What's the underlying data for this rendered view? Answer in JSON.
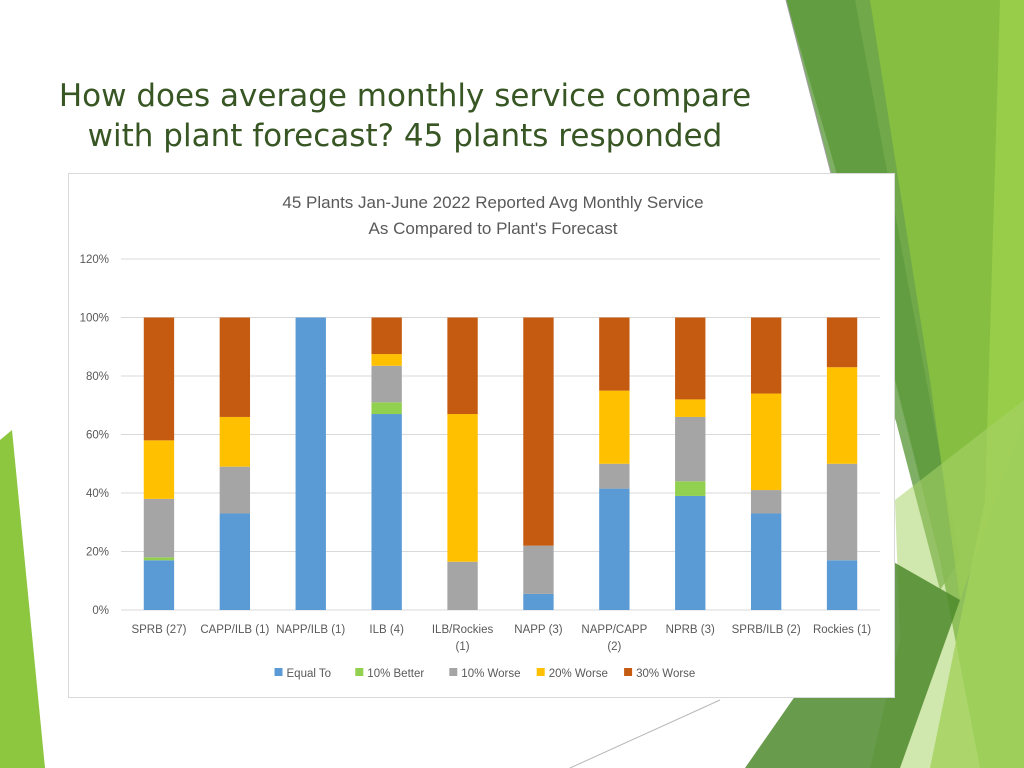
{
  "slide": {
    "title_line1": "How does average monthly service compare",
    "title_line2": "with plant forecast? 45 plants responded"
  },
  "colors": {
    "title": "#375623",
    "deco_green_dark": "#6aa84f",
    "deco_green_light": "#8dc63f"
  },
  "chart_data": {
    "type": "bar",
    "stacked": true,
    "title_line1": "45 Plants Jan-June 2022 Reported Avg Monthly Service",
    "title_line2": "As Compared to Plant's Forecast",
    "xlabel": "",
    "ylabel": "",
    "ylim": [
      0,
      120
    ],
    "yticks": [
      0,
      20,
      40,
      60,
      80,
      100,
      120
    ],
    "ytick_labels": [
      "0%",
      "20%",
      "40%",
      "60%",
      "80%",
      "100%",
      "120%"
    ],
    "grid": true,
    "legend_position": "bottom",
    "categories": [
      [
        "SPRB (27)"
      ],
      [
        "CAPP/ILB (1)"
      ],
      [
        "NAPP/ILB (1)"
      ],
      [
        "ILB (4)"
      ],
      [
        "ILB/Rockies",
        "(1)"
      ],
      [
        "NAPP (3)"
      ],
      [
        "NAPP/CAPP",
        "(2)"
      ],
      [
        "NPRB (3)"
      ],
      [
        "SPRB/ILB (2)"
      ],
      [
        "Rockies (1)"
      ]
    ],
    "series": [
      {
        "name": "Equal To",
        "color": "#5b9bd5",
        "values": [
          17,
          33,
          100,
          67,
          0,
          5.5,
          41.5,
          39,
          33,
          17
        ]
      },
      {
        "name": "10% Better",
        "color": "#92d050",
        "values": [
          1,
          0,
          0,
          4,
          0,
          0,
          0,
          5,
          0,
          0
        ]
      },
      {
        "name": "10% Worse",
        "color": "#a5a5a5",
        "values": [
          20,
          16,
          0,
          12.5,
          16.5,
          16.5,
          8.5,
          22,
          8,
          33
        ]
      },
      {
        "name": "20% Worse",
        "color": "#ffc000",
        "values": [
          20,
          17,
          0,
          4,
          50.5,
          0,
          25,
          6,
          33,
          33
        ]
      },
      {
        "name": "30% Worse",
        "color": "#c55a11",
        "values": [
          42,
          34,
          0,
          12.5,
          33,
          78,
          25,
          28,
          26,
          17
        ]
      }
    ]
  }
}
